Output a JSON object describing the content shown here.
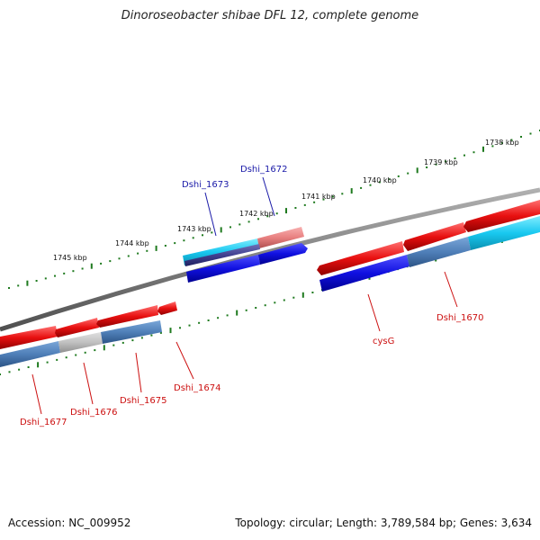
{
  "title": "Dinoroseobacter shibae DFL 12, complete genome",
  "footer": {
    "accession": "Accession: NC_009952",
    "summary": "Topology: circular; Length: 3,789,584 bp; Genes: 3,634"
  },
  "colors": {
    "backbone": "#808080",
    "tick": "#1f7a1f",
    "forward_gene": "#e81010",
    "forward_cds": "#1010e0",
    "reverse_gene": "#e81010",
    "reverse_cds": "#4f7fb8",
    "highlight_cyan": "#18c8f0",
    "gray_gene": "#c0c0c0",
    "pink_gene": "#e88080",
    "forward_label": "#1a1aa8",
    "reverse_label": "#cc1010"
  },
  "scale": {
    "upper_labels": [
      "1745 kbp",
      "1744 kbp",
      "1743 kbp",
      "1742 kbp",
      "1741 kbp",
      "1740 kbp",
      "1739 kbp",
      "1738 kbp"
    ]
  },
  "forward_labels": [
    {
      "id": "Dshi_1673",
      "text": "Dshi_1673"
    },
    {
      "id": "Dshi_1672",
      "text": "Dshi_1672"
    }
  ],
  "reverse_labels": [
    {
      "id": "Dshi_1677",
      "text": "Dshi_1677"
    },
    {
      "id": "Dshi_1676",
      "text": "Dshi_1676"
    },
    {
      "id": "Dshi_1675",
      "text": "Dshi_1675"
    },
    {
      "id": "Dshi_1674",
      "text": "Dshi_1674"
    },
    {
      "id": "cysG",
      "text": "cysG"
    },
    {
      "id": "Dshi_1670",
      "text": "Dshi_1670"
    }
  ]
}
